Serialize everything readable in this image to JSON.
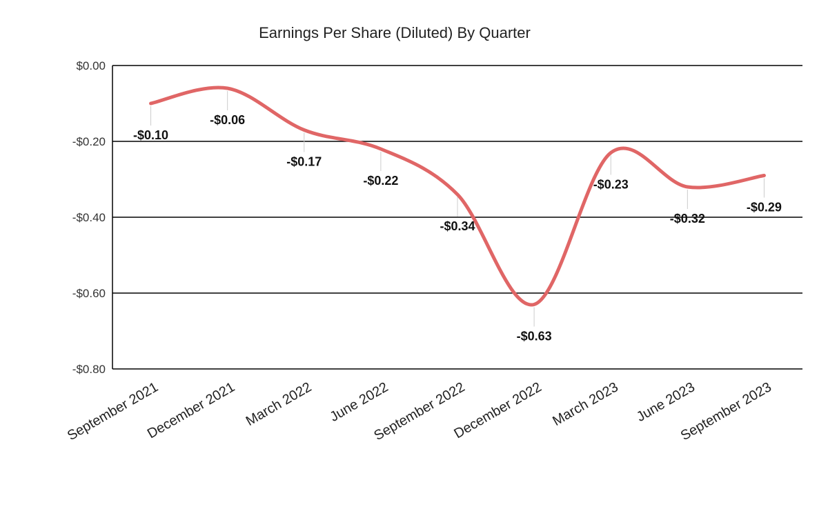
{
  "chart_data": {
    "type": "line",
    "title": "Earnings Per Share (Diluted) By Quarter",
    "xlabel": "",
    "ylabel": "",
    "categories": [
      "September 2021",
      "December 2021",
      "March 2022",
      "June 2022",
      "September 2022",
      "December 2022",
      "March 2023",
      "June 2023",
      "September 2023"
    ],
    "series": [
      {
        "values": [
          -0.1,
          -0.06,
          -0.17,
          -0.22,
          -0.34,
          -0.63,
          -0.23,
          -0.32,
          -0.29
        ]
      }
    ],
    "data_labels": [
      "-$0.10",
      "-$0.06",
      "-$0.17",
      "-$0.22",
      "-$0.34",
      "-$0.63",
      "-$0.23",
      "-$0.32",
      "-$0.29"
    ],
    "ylim": [
      -0.8,
      0.0
    ],
    "yticks": [
      0.0,
      -0.2,
      -0.4,
      -0.6,
      -0.8
    ],
    "ytick_labels": [
      "$0.00",
      "-$0.20",
      "-$0.40",
      "-$0.60",
      "-$0.80"
    ],
    "grid": true,
    "legend": "none",
    "line_color": "#e06666"
  }
}
